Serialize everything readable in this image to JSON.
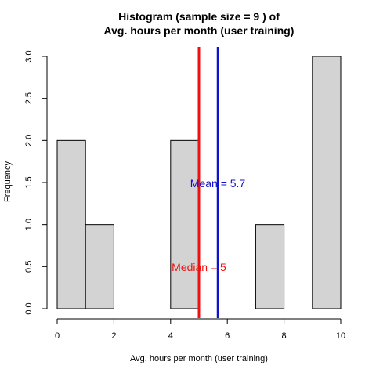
{
  "chart_data": {
    "type": "bar",
    "title_line1": "Histogram (sample size =  9 ) of",
    "title_line2": "Avg. hours per month (user training)",
    "xlabel": "Avg. hours per month (user training)",
    "ylabel": "Frequency",
    "bins": [
      {
        "start": 0,
        "end": 1,
        "count": 2
      },
      {
        "start": 1,
        "end": 2,
        "count": 1
      },
      {
        "start": 2,
        "end": 3,
        "count": 0
      },
      {
        "start": 3,
        "end": 4,
        "count": 0
      },
      {
        "start": 4,
        "end": 5,
        "count": 2
      },
      {
        "start": 5,
        "end": 6,
        "count": 0
      },
      {
        "start": 6,
        "end": 7,
        "count": 0
      },
      {
        "start": 7,
        "end": 8,
        "count": 1
      },
      {
        "start": 8,
        "end": 9,
        "count": 0
      },
      {
        "start": 9,
        "end": 10,
        "count": 3
      }
    ],
    "xlim": [
      0,
      10
    ],
    "ylim": [
      0,
      3
    ],
    "xticks": [
      0,
      2,
      4,
      6,
      8,
      10
    ],
    "yticks": [
      0.0,
      0.5,
      1.0,
      1.5,
      2.0,
      2.5,
      3.0
    ],
    "ytick_labels": [
      "0.0",
      "0.5",
      "1.0",
      "1.5",
      "2.0",
      "2.5",
      "3.0"
    ],
    "median": {
      "value": 5,
      "label": "Median = 5",
      "color": "#ee1111"
    },
    "mean": {
      "value": 5.67,
      "label": "Mean = 5.7",
      "color": "#1111cc"
    },
    "bar_color": "#d3d3d3",
    "grid": false
  }
}
